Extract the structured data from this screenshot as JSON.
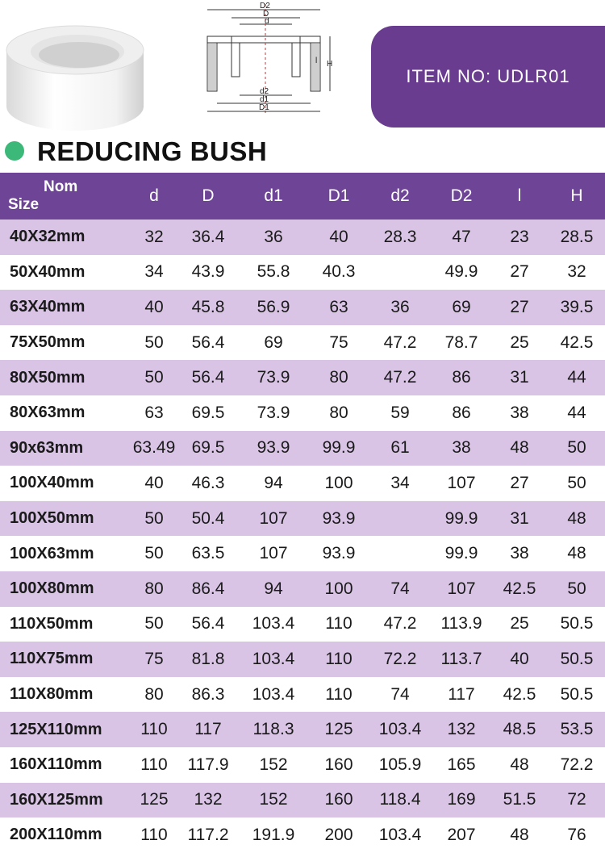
{
  "item_box": {
    "label": "ITEM  NO: UDLR01"
  },
  "heading": {
    "title": "REDUCING BUSH"
  },
  "drawing_labels": {
    "D2": "D2",
    "D": "D",
    "d": "d",
    "l": "l",
    "H": "H",
    "d2": "d2",
    "d1": "d1",
    "D1": "D1"
  },
  "table": {
    "header_size_line1": "Nom",
    "header_size_line2": "Size",
    "columns": [
      "d",
      "D",
      "d1",
      "D1",
      "d2",
      "D2",
      "l",
      "H"
    ],
    "rows": [
      {
        "size": "40X32mm",
        "cells": [
          "32",
          "36.4",
          "36",
          "40",
          "28.3",
          "47",
          "23",
          "28.5"
        ]
      },
      {
        "size": "50X40mm",
        "cells": [
          "34",
          "43.9",
          "55.8",
          "40.3",
          "",
          "49.9",
          "27",
          "32"
        ]
      },
      {
        "size": "63X40mm",
        "cells": [
          "40",
          "45.8",
          "56.9",
          "63",
          "36",
          "69",
          "27",
          "39.5"
        ]
      },
      {
        "size": "75X50mm",
        "cells": [
          "50",
          "56.4",
          "69",
          "75",
          "47.2",
          "78.7",
          "25",
          "42.5"
        ]
      },
      {
        "size": "80X50mm",
        "cells": [
          "50",
          "56.4",
          "73.9",
          "80",
          "47.2",
          "86",
          "31",
          "44"
        ]
      },
      {
        "size": "80X63mm",
        "cells": [
          "63",
          "69.5",
          "73.9",
          "80",
          "59",
          "86",
          "38",
          "44"
        ]
      },
      {
        "size": "90x63mm",
        "cells": [
          "63.49",
          "69.5",
          "93.9",
          "99.9",
          "61",
          "38",
          "48",
          "50"
        ]
      },
      {
        "size": "100X40mm",
        "cells": [
          "40",
          "46.3",
          "94",
          "100",
          "34",
          "107",
          "27",
          "50"
        ]
      },
      {
        "size": "100X50mm",
        "cells": [
          "50",
          "50.4",
          "107",
          "93.9",
          "",
          "99.9",
          "31",
          "48"
        ]
      },
      {
        "size": "100X63mm",
        "cells": [
          "50",
          "63.5",
          "107",
          "93.9",
          "",
          "99.9",
          "38",
          "48"
        ]
      },
      {
        "size": "100X80mm",
        "cells": [
          "80",
          "86.4",
          "94",
          "100",
          "74",
          "107",
          "42.5",
          "50"
        ]
      },
      {
        "size": "110X50mm",
        "cells": [
          "50",
          "56.4",
          "103.4",
          "110",
          "47.2",
          "113.9",
          "25",
          "50.5"
        ]
      },
      {
        "size": "110X75mm",
        "cells": [
          "75",
          "81.8",
          "103.4",
          "110",
          "72.2",
          "113.7",
          "40",
          "50.5"
        ]
      },
      {
        "size": "110X80mm",
        "cells": [
          "80",
          "86.3",
          "103.4",
          "110",
          "74",
          "117",
          "42.5",
          "50.5"
        ]
      },
      {
        "size": "125X110mm",
        "cells": [
          "110",
          "117",
          "118.3",
          "125",
          "103.4",
          "132",
          "48.5",
          "53.5"
        ]
      },
      {
        "size": "160X110mm",
        "cells": [
          "110",
          "117.9",
          "152",
          "160",
          "105.9",
          "165",
          "48",
          "72.2"
        ]
      },
      {
        "size": "160X125mm",
        "cells": [
          "125",
          "132",
          "152",
          "160",
          "118.4",
          "169",
          "51.5",
          "72"
        ]
      },
      {
        "size": "200X110mm",
        "cells": [
          "110",
          "117.2",
          "191.9",
          "200",
          "103.4",
          "207",
          "48",
          "76"
        ]
      }
    ]
  }
}
